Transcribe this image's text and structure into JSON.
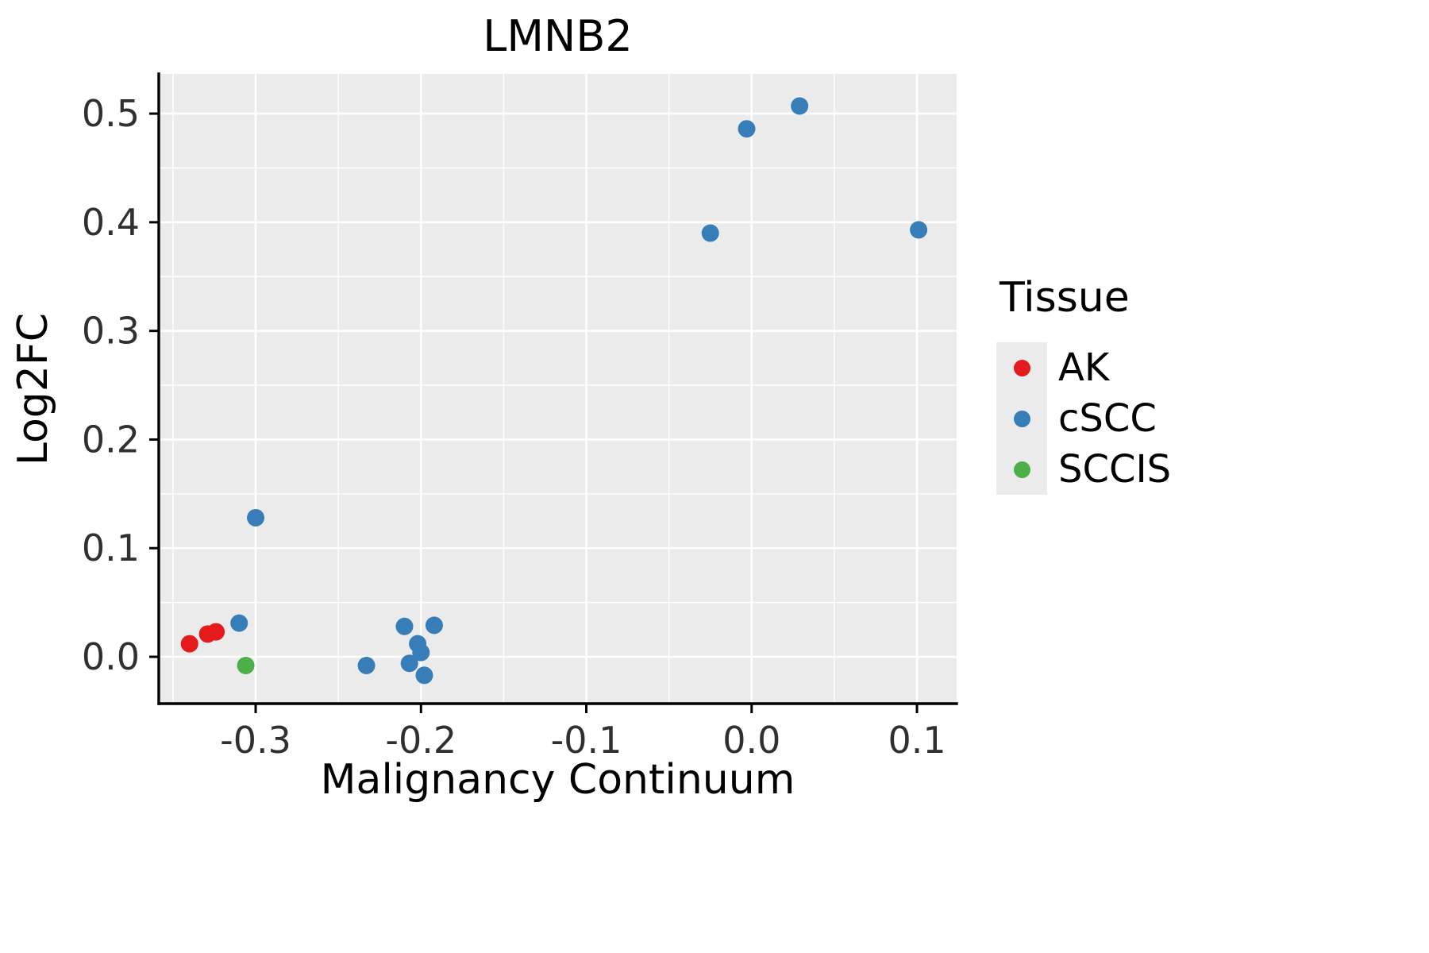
{
  "title": "LMNB2",
  "axes": {
    "x_label": "Malignancy Continuum",
    "y_label": "Log2FC"
  },
  "legend": {
    "title": "Tissue",
    "entries": [
      {
        "label": "AK",
        "color": "#E41A1C"
      },
      {
        "label": "cSCC",
        "color": "#377EB8"
      },
      {
        "label": "SCCIS",
        "color": "#4DAF4A"
      }
    ]
  },
  "chart_data": {
    "type": "scatter",
    "title": "LMNB2",
    "xlabel": "Malignancy Continuum",
    "ylabel": "Log2FC",
    "xlim": [
      -0.3586,
      0.124
    ],
    "ylim": [
      -0.0431,
      0.5366
    ],
    "xticks": {
      "values": [
        -0.3,
        -0.2,
        -0.1,
        0.0,
        0.1
      ],
      "labels": [
        "-0.3",
        "-0.2",
        "-0.1",
        "0.0",
        "0.1"
      ]
    },
    "yticks": {
      "values": [
        0.0,
        0.1,
        0.2,
        0.3,
        0.4,
        0.5
      ],
      "labels": [
        "0.0",
        "0.1",
        "0.2",
        "0.3",
        "0.4",
        "0.5"
      ]
    },
    "grid": true,
    "legend_position": "right",
    "panel_background": "#EBEBEB",
    "grid_color": "#FFFFFF",
    "axis_color": "#000000",
    "tick_label_color": "#303030",
    "point_radius": 11,
    "series": [
      {
        "name": "AK",
        "color": "#E41A1C",
        "points": [
          [
            -0.34,
            0.012
          ],
          [
            -0.329,
            0.021
          ],
          [
            -0.324,
            0.023
          ]
        ]
      },
      {
        "name": "cSCC",
        "color": "#377EB8",
        "points": [
          [
            -0.31,
            0.031
          ],
          [
            -0.3,
            0.128
          ],
          [
            -0.233,
            -0.008
          ],
          [
            -0.21,
            0.028
          ],
          [
            -0.207,
            -0.006
          ],
          [
            -0.202,
            0.012
          ],
          [
            -0.2,
            0.004
          ],
          [
            -0.198,
            -0.017
          ],
          [
            -0.192,
            0.029
          ],
          [
            -0.025,
            0.39
          ],
          [
            -0.003,
            0.486
          ],
          [
            0.029,
            0.507
          ],
          [
            0.101,
            0.393
          ]
        ]
      },
      {
        "name": "SCCIS",
        "color": "#4DAF4A",
        "points": [
          [
            -0.306,
            -0.008
          ]
        ]
      }
    ]
  }
}
